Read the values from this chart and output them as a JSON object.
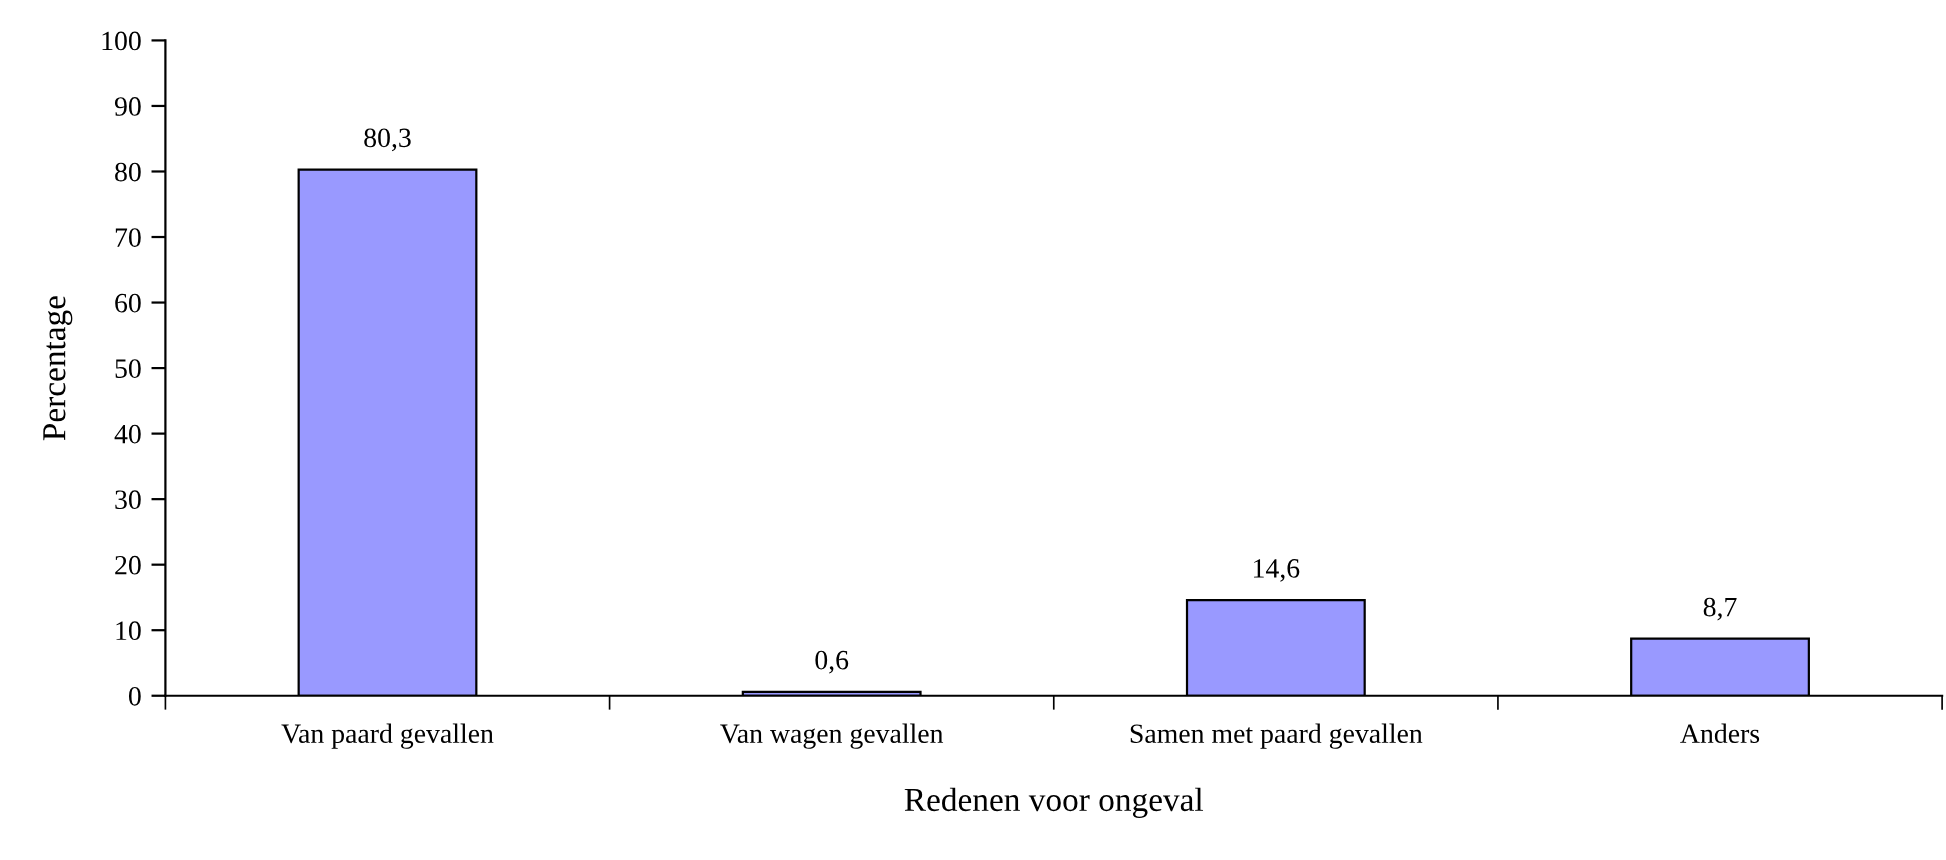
{
  "chart_data": {
    "type": "bar",
    "xlabel": "Redenen voor ongeval",
    "ylabel": "Percentage",
    "categories": [
      "Van paard gevallen",
      "Van wagen gevallen",
      "Samen met paard gevallen",
      "Anders"
    ],
    "values": [
      80.3,
      0.6,
      14.6,
      8.7
    ],
    "value_labels": [
      "80,3",
      "0,6",
      "14,6",
      "8,7"
    ],
    "color": "#9999ff",
    "ylim": [
      0,
      100
    ],
    "yticks": [
      0,
      10,
      20,
      30,
      40,
      50,
      60,
      70,
      80,
      90,
      100
    ],
    "grid": false
  }
}
